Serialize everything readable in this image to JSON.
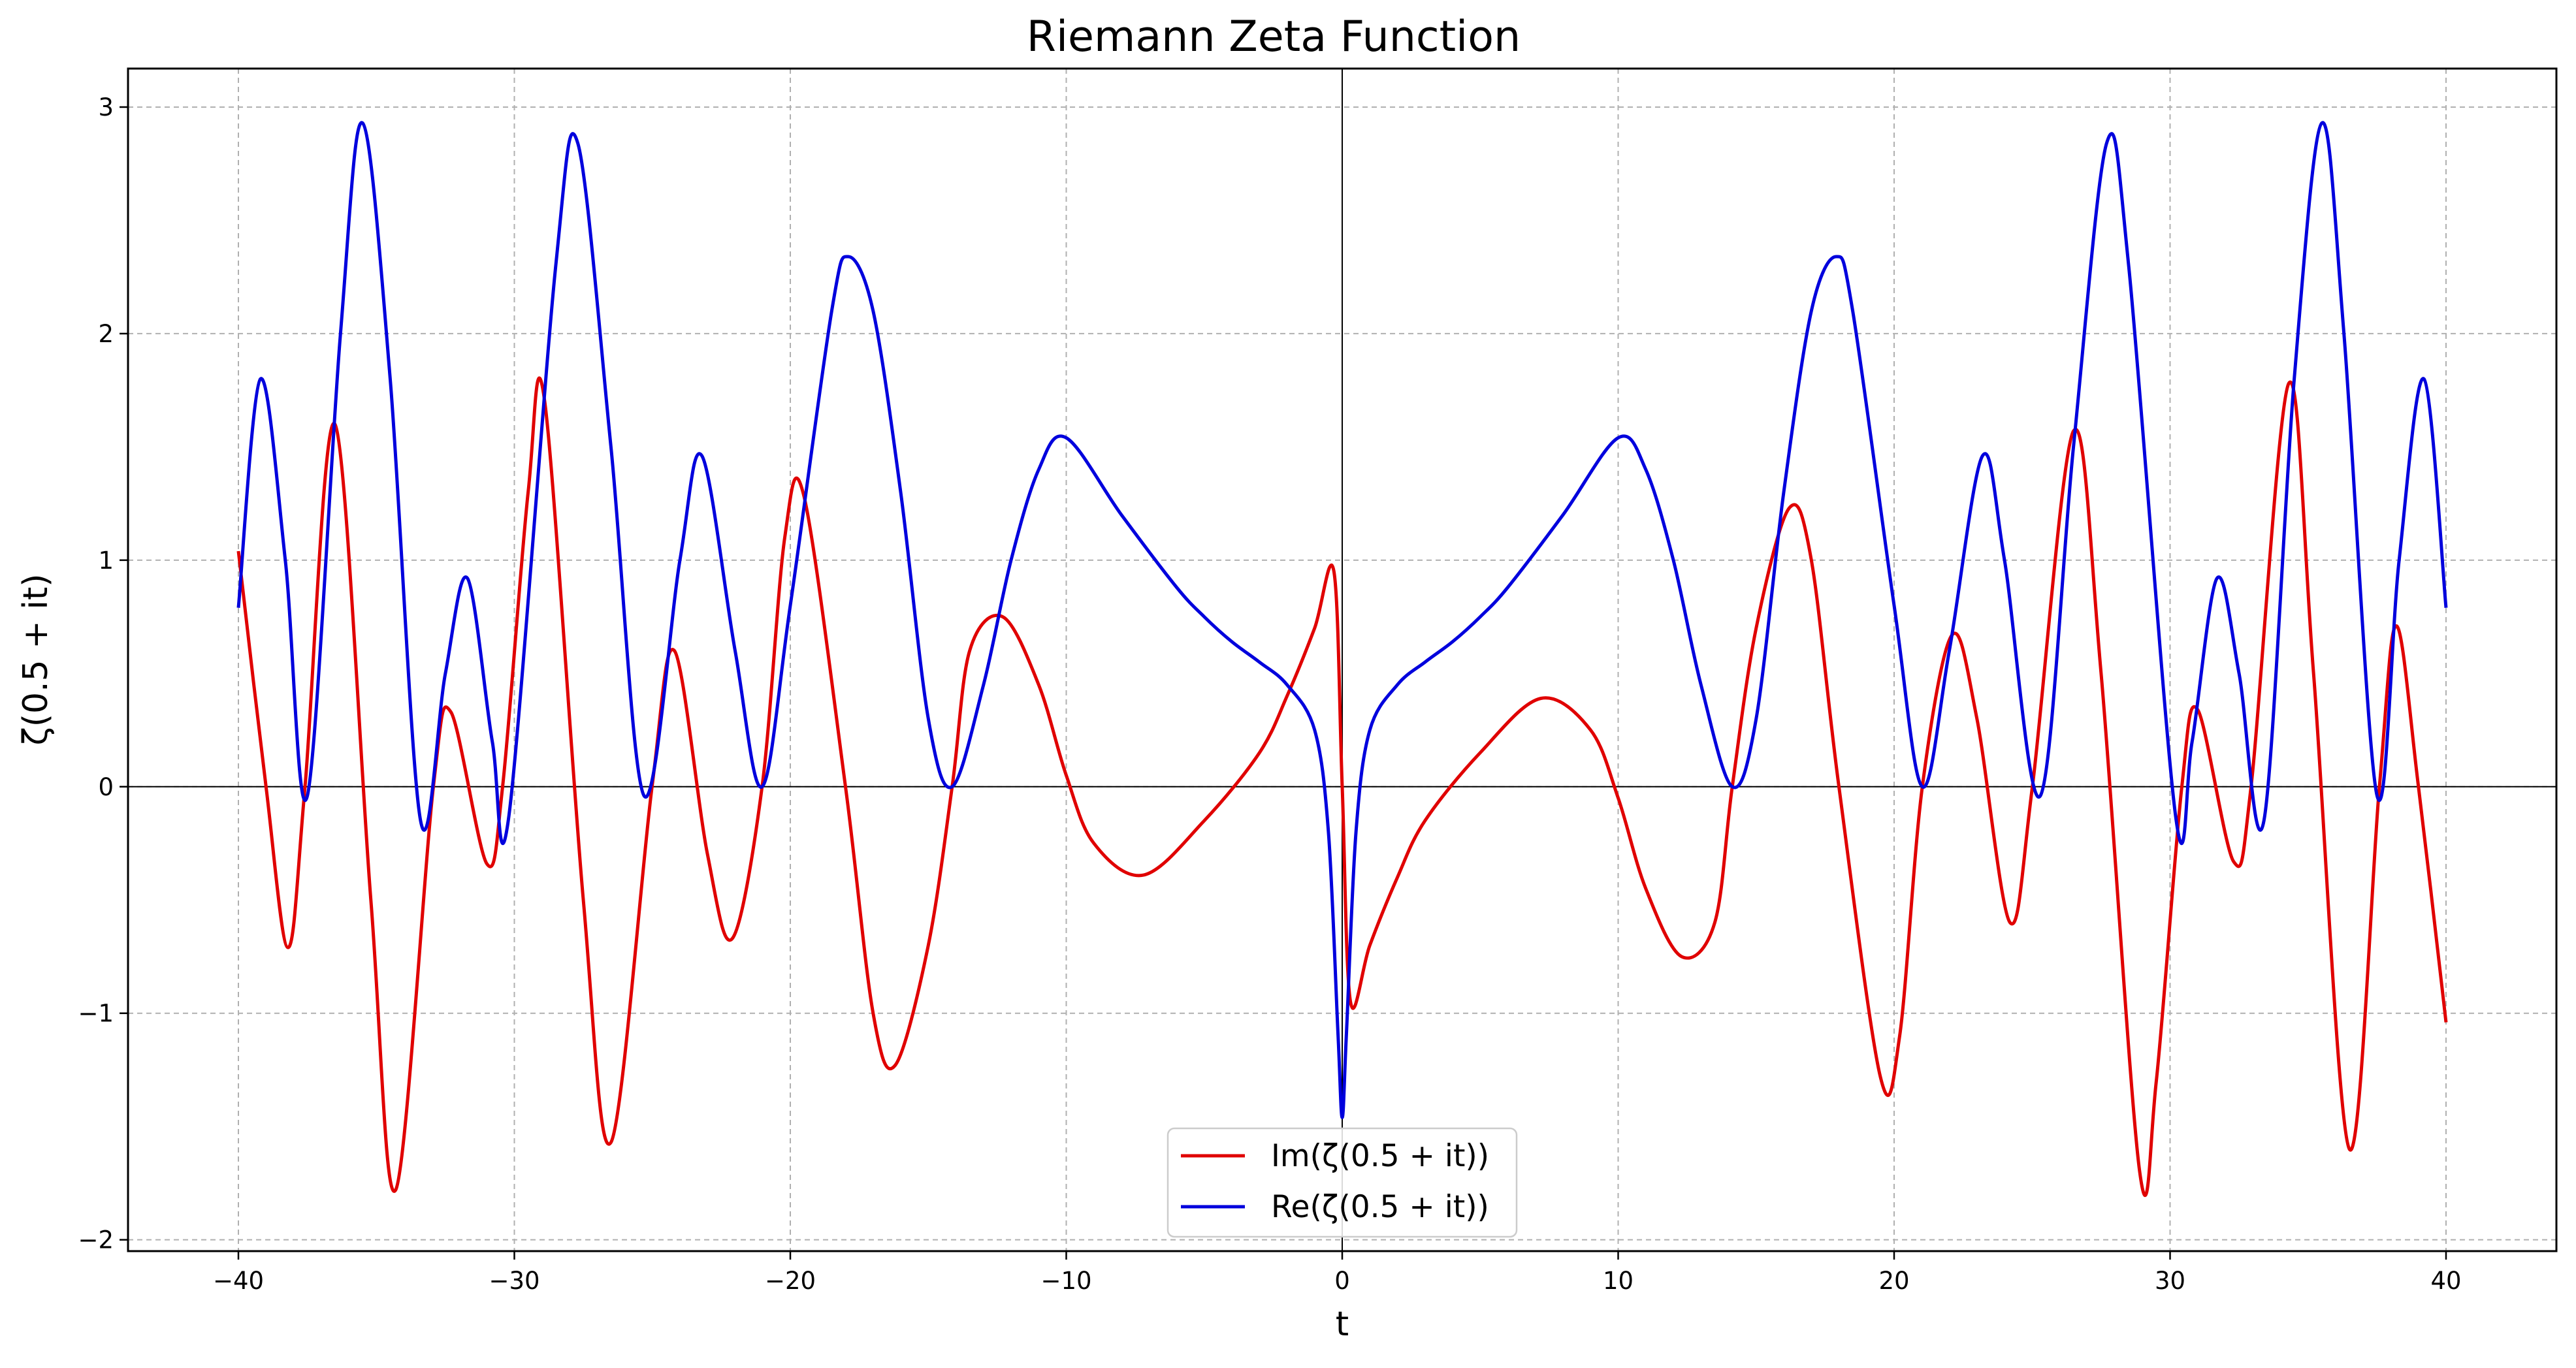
{
  "chart_data": {
    "type": "line",
    "title": "Riemann Zeta Function",
    "xlabel": "t",
    "ylabel": "ζ(0.5 + it)",
    "xlim": [
      -44,
      44
    ],
    "ylim": [
      -2.05,
      3.17
    ],
    "xticks": [
      -40,
      -30,
      -20,
      -10,
      0,
      10,
      20,
      30,
      40
    ],
    "xtick_labels": [
      "−40",
      "−30",
      "−20",
      "−10",
      "0",
      "10",
      "20",
      "30",
      "40"
    ],
    "yticks": [
      -2,
      -1,
      0,
      1,
      2,
      3
    ],
    "ytick_labels": [
      "−2",
      "−1",
      "0",
      "1",
      "2",
      "3"
    ],
    "grid": true,
    "reference_lines": {
      "x": 0,
      "y": 0
    },
    "legend_position": "lower center",
    "series": [
      {
        "name": "Im(ζ(0.5 + it))",
        "color": "#e00000",
        "parity": "odd",
        "points": [
          [
            0,
            0
          ],
          [
            0.3,
            -0.95
          ],
          [
            1,
            -0.7
          ],
          [
            2,
            -0.4
          ],
          [
            3,
            -0.15
          ],
          [
            5,
            0.15
          ],
          [
            7.2,
            0.39
          ],
          [
            9,
            0.25
          ],
          [
            10,
            -0.05
          ],
          [
            11,
            -0.45
          ],
          [
            12.3,
            -0.75
          ],
          [
            13.5,
            -0.6
          ],
          [
            14.134,
            0
          ],
          [
            15,
            0.7
          ],
          [
            16.2,
            1.23
          ],
          [
            17,
            1.0
          ],
          [
            18,
            0
          ],
          [
            19.5,
            -1.28
          ],
          [
            20.2,
            -1.1
          ],
          [
            21.022,
            0
          ],
          [
            22.1,
            0.67
          ],
          [
            23,
            0.3
          ],
          [
            24.2,
            -0.6
          ],
          [
            25.011,
            0
          ],
          [
            26.5,
            1.57
          ],
          [
            27.5,
            0.5
          ],
          [
            28.9,
            -1.7
          ],
          [
            29.5,
            -1.3
          ],
          [
            30.425,
            0
          ],
          [
            31,
            0.34
          ],
          [
            32.3,
            -0.33
          ],
          [
            32.935,
            0
          ],
          [
            34.3,
            1.78
          ],
          [
            35.2,
            0.5
          ],
          [
            36.5,
            -1.6
          ],
          [
            37.586,
            0
          ],
          [
            38.2,
            0.71
          ],
          [
            39,
            0
          ],
          [
            40,
            -1.04
          ]
        ]
      },
      {
        "name": "Re(ζ(0.5 + it))",
        "color": "#0000dd",
        "parity": "even",
        "points": [
          [
            0,
            -1.46
          ],
          [
            0.15,
            -1.1
          ],
          [
            0.5,
            -0.2
          ],
          [
            1,
            0.25
          ],
          [
            2,
            0.45
          ],
          [
            3,
            0.55
          ],
          [
            4,
            0.64
          ],
          [
            5,
            0.75
          ],
          [
            6,
            0.88
          ],
          [
            8,
            1.2
          ],
          [
            10,
            1.54
          ],
          [
            11,
            1.4
          ],
          [
            12,
            1.0
          ],
          [
            13,
            0.45
          ],
          [
            14.134,
            0
          ],
          [
            15,
            0.3
          ],
          [
            16,
            1.3
          ],
          [
            17,
            2.1
          ],
          [
            17.9,
            2.34
          ],
          [
            18.5,
            2.1
          ],
          [
            20,
            0.8
          ],
          [
            21.022,
            0
          ],
          [
            22,
            0.6
          ],
          [
            23.2,
            1.46
          ],
          [
            24,
            1.0
          ],
          [
            25.3,
            -0.04
          ],
          [
            26.5,
            1.5
          ],
          [
            27.7,
            2.84
          ],
          [
            28.5,
            2.3
          ],
          [
            30.2,
            -0.13
          ],
          [
            30.8,
            0.2
          ],
          [
            31.7,
            0.92
          ],
          [
            32.5,
            0.5
          ],
          [
            33.4,
            -0.15
          ],
          [
            34.5,
            1.8
          ],
          [
            35.5,
            2.93
          ],
          [
            36.3,
            2.0
          ],
          [
            37.5,
            -0.04
          ],
          [
            38.3,
            1.0
          ],
          [
            39.2,
            1.8
          ],
          [
            40,
            0.79
          ]
        ]
      }
    ]
  }
}
